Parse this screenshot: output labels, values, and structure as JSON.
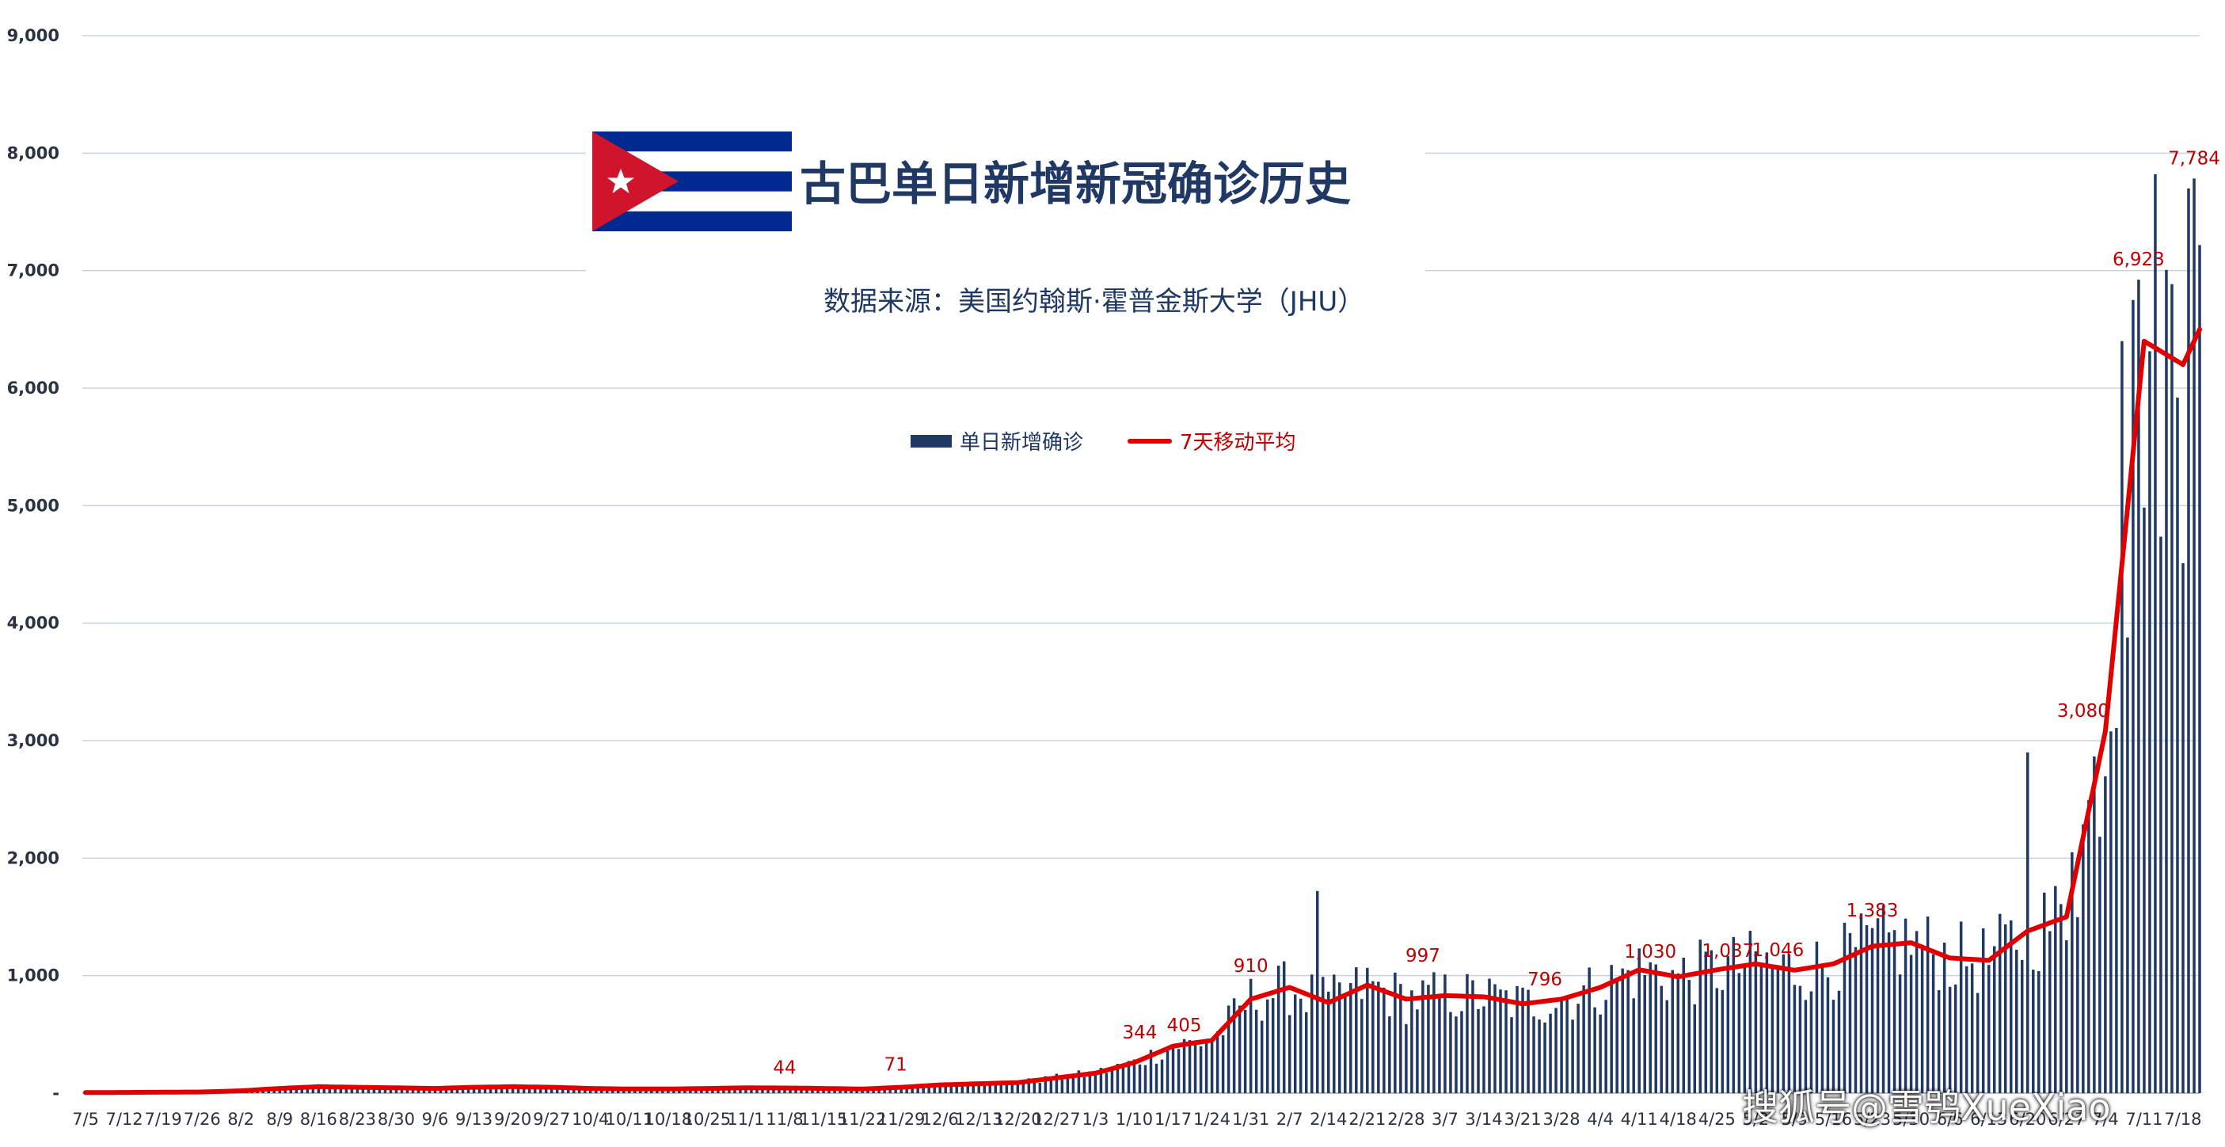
{
  "chart_data": {
    "type": "bar",
    "title": "古巴单日新增新冠确诊历史",
    "subtitle": "数据来源：美国约翰斯·霍普金斯大学（JHU）",
    "legend": [
      "单日新增确诊",
      "7天移动平均"
    ],
    "legend_position": "top-center",
    "grid": true,
    "ylim": [
      0,
      9000
    ],
    "y_ticks": [
      "-",
      "1,000",
      "2,000",
      "3,000",
      "4,000",
      "5,000",
      "6,000",
      "7,000",
      "8,000",
      "9,000"
    ],
    "x_ticks": [
      "7/5",
      "7/12",
      "7/19",
      "7/26",
      "8/2",
      "8/9",
      "8/16",
      "8/23",
      "8/30",
      "9/6",
      "9/13",
      "9/20",
      "9/27",
      "10/4",
      "10/11",
      "10/18",
      "10/25",
      "11/1",
      "11/8",
      "11/15",
      "11/22",
      "11/29",
      "12/6",
      "12/13",
      "12/20",
      "12/27",
      "1/3",
      "1/10",
      "1/17",
      "1/24",
      "1/31",
      "2/7",
      "2/14",
      "2/21",
      "2/28",
      "3/7",
      "3/14",
      "3/21",
      "3/28",
      "4/4",
      "4/11",
      "4/18",
      "4/25",
      "5/2",
      "5/9",
      "5/16",
      "5/23",
      "5/30",
      "6/6",
      "6/13",
      "6/20",
      "6/27",
      "7/4",
      "7/11",
      "7/18"
    ],
    "series": [
      {
        "name": "单日新增确诊",
        "type": "bar",
        "color": "#1f3864"
      },
      {
        "name": "7天移动平均",
        "type": "line",
        "color": "#e00000"
      }
    ],
    "weekly_avg_anchor_days": [
      0,
      7,
      14,
      21,
      28,
      35,
      42,
      49,
      56,
      63,
      70,
      77,
      84,
      91,
      98,
      105,
      112,
      119,
      126,
      133,
      140,
      147,
      154,
      161,
      168,
      175,
      182,
      189,
      196,
      203,
      210,
      217,
      224,
      231,
      238,
      245,
      252,
      259,
      266,
      273,
      280,
      287,
      294,
      301,
      308,
      315,
      322,
      329,
      336,
      343,
      350,
      357,
      364,
      371,
      378,
      381
    ],
    "weekly_avg_anchor_values": [
      5,
      6,
      8,
      10,
      20,
      40,
      55,
      50,
      45,
      40,
      50,
      55,
      50,
      40,
      35,
      35,
      40,
      45,
      44,
      40,
      35,
      50,
      70,
      80,
      90,
      130,
      170,
      260,
      400,
      450,
      800,
      900,
      770,
      920,
      800,
      830,
      820,
      760,
      800,
      900,
      1050,
      990,
      1050,
      1100,
      1046,
      1100,
      1250,
      1280,
      1150,
      1130,
      1380,
      1500,
      3080,
      6400,
      6200,
      6500
    ],
    "annotations": [
      {
        "day": 126,
        "value": 44,
        "label": "44"
      },
      {
        "day": 146,
        "value": 71,
        "label": "71"
      },
      {
        "day": 190,
        "value": 344,
        "label": "344"
      },
      {
        "day": 198,
        "value": 405,
        "label": "405"
      },
      {
        "day": 210,
        "value": 910,
        "label": "910"
      },
      {
        "day": 241,
        "value": 997,
        "label": "997"
      },
      {
        "day": 263,
        "value": 796,
        "label": "796"
      },
      {
        "day": 282,
        "value": 1030,
        "label": "1,030"
      },
      {
        "day": 296,
        "value": 1037,
        "label": "1,037"
      },
      {
        "day": 305,
        "value": 1046,
        "label": "1,046"
      },
      {
        "day": 322,
        "value": 1383,
        "label": "1,383"
      },
      {
        "day": 360,
        "value": 3080,
        "label": "3,080"
      },
      {
        "day": 370,
        "value": 6923,
        "label": "6,923"
      },
      {
        "day": 380,
        "value": 7784,
        "label": "7,784"
      }
    ],
    "notable_bars": [
      {
        "day": 222,
        "value": 1720
      },
      {
        "day": 350,
        "value": 2900
      },
      {
        "day": 358,
        "value": 2050
      },
      {
        "day": 367,
        "value": 6400
      },
      {
        "day": 369,
        "value": 6750
      },
      {
        "day": 370,
        "value": 6923
      },
      {
        "day": 379,
        "value": 7700
      },
      {
        "day": 380,
        "value": 7784
      }
    ]
  },
  "watermark": "搜狐号@雪鸮XueXiao"
}
